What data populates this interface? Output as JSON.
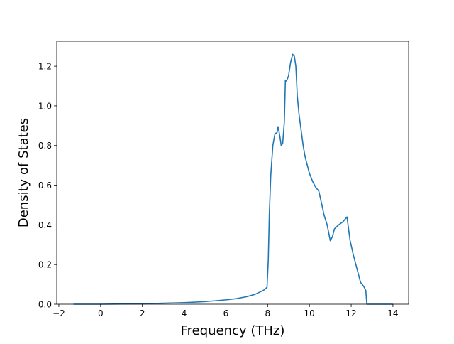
{
  "chart_data": {
    "type": "line",
    "title": "",
    "xlabel": "Frequency (THz)",
    "ylabel": "Density of States",
    "xlim": [
      -2.1,
      14.75
    ],
    "ylim": [
      0.0,
      1.3258
    ],
    "x_ticks": [
      -2,
      0,
      2,
      4,
      6,
      8,
      10,
      12,
      14
    ],
    "x_tick_labels": [
      "−2",
      "0",
      "2",
      "4",
      "6",
      "8",
      "10",
      "12",
      "14"
    ],
    "y_ticks": [
      0.0,
      0.2,
      0.4,
      0.6,
      0.8,
      1.0,
      1.2
    ],
    "y_tick_labels": [
      "0.0",
      "0.2",
      "0.4",
      "0.6",
      "0.8",
      "1.0",
      "1.2"
    ],
    "grid": false,
    "legend": "none",
    "colors": {
      "line": "#1f77b4"
    },
    "series": [
      {
        "x": [
          -1.3,
          0.0,
          1.0,
          2.0,
          3.0,
          4.0,
          5.0,
          6.0,
          6.5,
          7.0,
          7.4,
          7.8,
          7.97,
          8.03,
          8.08,
          8.15,
          8.25,
          8.35,
          8.45,
          8.5,
          8.58,
          8.65,
          8.72,
          8.8,
          8.85,
          8.9,
          9.0,
          9.1,
          9.2,
          9.28,
          9.35,
          9.42,
          9.5,
          9.6,
          9.7,
          9.8,
          9.9,
          10.0,
          10.15,
          10.3,
          10.45,
          10.6,
          10.7,
          10.85,
          11.0,
          11.1,
          11.2,
          11.4,
          11.6,
          11.8,
          11.95,
          12.1,
          12.3,
          12.45,
          12.6,
          12.7,
          12.75,
          14.0
        ],
        "y": [
          0.0,
          0.0,
          0.001,
          0.002,
          0.005,
          0.008,
          0.013,
          0.022,
          0.028,
          0.038,
          0.05,
          0.07,
          0.085,
          0.22,
          0.45,
          0.65,
          0.8,
          0.86,
          0.865,
          0.895,
          0.85,
          0.8,
          0.81,
          0.92,
          1.13,
          1.125,
          1.15,
          1.22,
          1.26,
          1.25,
          1.2,
          1.05,
          0.96,
          0.88,
          0.8,
          0.74,
          0.7,
          0.66,
          0.62,
          0.59,
          0.57,
          0.5,
          0.45,
          0.4,
          0.32,
          0.34,
          0.38,
          0.4,
          0.415,
          0.44,
          0.32,
          0.25,
          0.17,
          0.11,
          0.09,
          0.07,
          0.0,
          0.0
        ]
      }
    ]
  }
}
